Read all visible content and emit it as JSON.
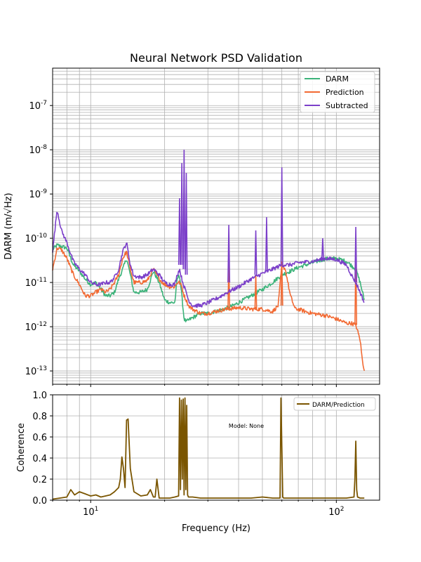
{
  "chart_data": [
    {
      "type": "line",
      "title": "Neural Network PSD Validation",
      "xlabel": "",
      "ylabel": "DARM (m/√Hz)",
      "xscale": "log",
      "yscale": "log",
      "xlim": [
        7,
        150
      ],
      "ylim": [
        5e-14,
        7e-07
      ],
      "grid": true,
      "legend_position": "top-right",
      "y_ticks": [
        "10^-13",
        "10^-12",
        "10^-11",
        "10^-10",
        "10^-9",
        "10^-8",
        "10^-7"
      ],
      "series": [
        {
          "name": "DARM",
          "color": "#3cb37a",
          "x": [
            7.0,
            7.3,
            7.6,
            8.0,
            8.5,
            9.0,
            9.5,
            10.0,
            10.5,
            11.0,
            11.5,
            12.0,
            12.5,
            13.0,
            13.5,
            14.0,
            14.5,
            15.0,
            16.0,
            17.0,
            18.0,
            19.0,
            20.0,
            21.0,
            22.0,
            22.5,
            23.0,
            23.5,
            24.0,
            24.5,
            25.0,
            26.0,
            27.0,
            28.0,
            30.0,
            32.0,
            35.0,
            38.0,
            40.0,
            45.0,
            50.0,
            55.0,
            60.0,
            65.0,
            70.0,
            80.0,
            90.0,
            100.0,
            110.0,
            120.0,
            125.0,
            130.0
          ],
          "y": [
            5.5e-11,
            7e-11,
            6.5e-11,
            6e-11,
            2.5e-11,
            1.8e-11,
            1.2e-11,
            9e-12,
            1e-11,
            7e-12,
            5e-12,
            5e-12,
            6e-12,
            1.2e-11,
            2e-11,
            3.5e-11,
            1.5e-11,
            6e-12,
            6e-12,
            7e-12,
            1.8e-11,
            1e-11,
            4e-12,
            3.5e-12,
            3.5e-12,
            1.2e-11,
            1.5e-11,
            5e-12,
            1.5e-12,
            1.3e-12,
            1.4e-12,
            1.6e-12,
            1.8e-12,
            2e-12,
            2e-12,
            2.2e-12,
            2.5e-12,
            3e-12,
            3.5e-12,
            5e-12,
            7e-12,
            1e-11,
            1.5e-11,
            1.8e-11,
            2.2e-11,
            2.8e-11,
            3.4e-11,
            3.5e-11,
            3e-11,
            2e-11,
            1e-11,
            4e-12
          ]
        },
        {
          "name": "Prediction",
          "color": "#f26a33",
          "x": [
            7.0,
            7.3,
            7.6,
            8.0,
            8.5,
            9.0,
            9.5,
            10.0,
            10.5,
            11.0,
            11.5,
            12.0,
            12.5,
            13.0,
            13.5,
            14.0,
            14.5,
            15.0,
            16.0,
            17.0,
            18.0,
            19.0,
            20.0,
            21.0,
            22.0,
            22.5,
            23.0,
            23.5,
            24.0,
            24.5,
            25.0,
            26.0,
            28.0,
            30.0,
            33.0,
            36.0,
            40.0,
            45.0,
            50.0,
            55.0,
            58.0,
            60.0,
            62.0,
            65.0,
            68.0,
            70.0,
            75.0,
            80.0,
            90.0,
            100.0,
            110.0,
            115.0,
            120.0,
            125.0,
            128.0,
            130.0
          ],
          "y": [
            2e-11,
            6e-11,
            5.5e-11,
            3.5e-11,
            1.5e-11,
            9e-12,
            5e-12,
            5e-12,
            6e-12,
            7e-12,
            6e-12,
            7e-12,
            1e-11,
            1.5e-11,
            3.5e-11,
            5e-11,
            2e-11,
            1e-11,
            1e-11,
            1.1e-11,
            2e-11,
            1.2e-11,
            9e-12,
            8e-12,
            8e-12,
            1e-11,
            1e-11,
            8e-12,
            5e-12,
            4e-12,
            3e-12,
            2.5e-12,
            2e-12,
            2e-12,
            2.3e-12,
            2.5e-12,
            2.7e-12,
            2.5e-12,
            2.5e-12,
            2.2e-12,
            3e-12,
            2.5e-11,
            2e-11,
            5e-12,
            2.5e-12,
            2.5e-12,
            2.2e-12,
            2e-12,
            1.8e-12,
            1.5e-12,
            1.2e-12,
            1.2e-12,
            1.1e-12,
            5e-13,
            1.5e-13,
            1.1e-13
          ]
        },
        {
          "name": "Subtracted",
          "color": "#7b3fc9",
          "x": [
            7.0,
            7.3,
            7.6,
            8.0,
            8.5,
            9.0,
            9.5,
            10.0,
            10.5,
            11.0,
            11.5,
            12.0,
            12.5,
            13.0,
            13.5,
            14.0,
            14.5,
            15.0,
            16.0,
            17.0,
            18.0,
            19.0,
            20.0,
            21.0,
            22.0,
            22.5,
            23.0,
            23.5,
            24.0,
            24.5,
            25.0,
            26.0,
            27.0,
            28.0,
            30.0,
            33.0,
            36.0,
            40.0,
            45.0,
            50.0,
            55.0,
            60.0,
            65.0,
            70.0,
            80.0,
            90.0,
            100.0,
            110.0,
            115.0,
            120.0,
            125.0,
            130.0
          ],
          "y": [
            5e-11,
            4.5e-10,
            1.5e-10,
            8e-11,
            3e-11,
            2e-11,
            1.5e-11,
            1e-11,
            9e-12,
            9e-12,
            1e-11,
            1e-11,
            1.3e-11,
            2e-11,
            5e-11,
            8e-11,
            2.5e-11,
            1.4e-11,
            1.3e-11,
            1.5e-11,
            2e-11,
            1.5e-11,
            1e-11,
            9e-12,
            9e-12,
            1.5e-11,
            2e-11,
            1.2e-11,
            8e-12,
            6e-12,
            4e-12,
            3e-12,
            3e-12,
            3e-12,
            3.5e-12,
            4.5e-12,
            6e-12,
            8e-12,
            1.2e-11,
            1.6e-11,
            2e-11,
            2.5e-11,
            2.5e-11,
            2.8e-11,
            3e-11,
            3.5e-11,
            3.3e-11,
            2.5e-11,
            1.5e-11,
            1e-11,
            6e-12,
            3.5e-12
          ]
        }
      ],
      "spikes": [
        {
          "series": "Subtracted",
          "x": 23.0,
          "base": 2.5e-11,
          "peak": 8e-10
        },
        {
          "series": "Subtracted",
          "x": 23.5,
          "base": 2.5e-11,
          "peak": 5e-09
        },
        {
          "series": "Subtracted",
          "x": 24.0,
          "base": 2e-11,
          "peak": 1e-08
        },
        {
          "series": "Subtracted",
          "x": 24.5,
          "base": 1.5e-11,
          "peak": 3e-09
        },
        {
          "series": "Subtracted",
          "x": 36.5,
          "base": 1e-11,
          "peak": 2e-10
        },
        {
          "series": "Subtracted",
          "x": 47.0,
          "base": 1.5e-11,
          "peak": 1.5e-10
        },
        {
          "series": "Subtracted",
          "x": 52.0,
          "base": 1.7e-11,
          "peak": 3e-10
        },
        {
          "series": "Subtracted",
          "x": 60.0,
          "base": 2.5e-11,
          "peak": 4e-09
        },
        {
          "series": "Subtracted",
          "x": 88.0,
          "base": 3.3e-11,
          "peak": 1e-10
        },
        {
          "series": "Subtracted",
          "x": 120.0,
          "base": 1e-11,
          "peak": 1.8e-10
        },
        {
          "series": "Prediction",
          "x": 36.5,
          "base": 2.5e-12,
          "peak": 3e-11
        },
        {
          "series": "Prediction",
          "x": 47.0,
          "base": 2.5e-12,
          "peak": 1.5e-11
        },
        {
          "series": "Prediction",
          "x": 60.0,
          "base": 3e-12,
          "peak": 3e-11
        },
        {
          "series": "Prediction",
          "x": 120.0,
          "base": 1.1e-12,
          "peak": 4e-11
        }
      ]
    },
    {
      "type": "line",
      "title": "",
      "xlabel": "Frequency (Hz)",
      "ylabel": "Coherence",
      "xscale": "log",
      "yscale": "linear",
      "xlim": [
        7,
        150
      ],
      "ylim": [
        0,
        1
      ],
      "y_ticks": [
        "0.0",
        "0.2",
        "0.4",
        "0.6",
        "0.8",
        "1.0"
      ],
      "x_ticks": [
        "10^1",
        "10^2"
      ],
      "grid": true,
      "legend_position": "top-right",
      "annotation": "Model: None",
      "series": [
        {
          "name": "DARM/Prediction",
          "color": "#7a5500",
          "x": [
            7.0,
            7.5,
            8.0,
            8.3,
            8.6,
            9.0,
            9.5,
            10.0,
            10.5,
            11.0,
            11.5,
            12.0,
            12.5,
            13.0,
            13.2,
            13.4,
            13.6,
            13.8,
            14.0,
            14.2,
            14.5,
            15.0,
            16.0,
            17.0,
            17.5,
            18.0,
            18.3,
            18.6,
            19.0,
            20.0,
            21.0,
            22.0,
            22.8,
            23.0,
            23.2,
            23.4,
            23.6,
            23.8,
            24.0,
            24.2,
            24.4,
            24.6,
            24.8,
            25.0,
            26.0,
            28.0,
            30.0,
            35.0,
            40.0,
            45.0,
            50.0,
            55.0,
            59.0,
            59.5,
            60.0,
            60.5,
            61.0,
            70.0,
            80.0,
            90.0,
            100.0,
            110.0,
            118.0,
            119.0,
            120.0,
            121.0,
            122.0,
            125.0,
            130.0
          ],
          "y": [
            0.01,
            0.02,
            0.03,
            0.1,
            0.05,
            0.08,
            0.06,
            0.04,
            0.05,
            0.03,
            0.04,
            0.05,
            0.08,
            0.12,
            0.2,
            0.41,
            0.3,
            0.12,
            0.76,
            0.77,
            0.3,
            0.08,
            0.04,
            0.05,
            0.1,
            0.03,
            0.03,
            0.2,
            0.02,
            0.02,
            0.02,
            0.03,
            0.04,
            0.97,
            0.1,
            0.95,
            0.2,
            0.96,
            0.05,
            0.97,
            0.1,
            0.9,
            0.05,
            0.03,
            0.03,
            0.02,
            0.02,
            0.02,
            0.02,
            0.02,
            0.03,
            0.02,
            0.02,
            0.97,
            0.5,
            0.03,
            0.02,
            0.02,
            0.02,
            0.02,
            0.02,
            0.02,
            0.03,
            0.2,
            0.56,
            0.1,
            0.03,
            0.02,
            0.02
          ]
        }
      ]
    }
  ]
}
